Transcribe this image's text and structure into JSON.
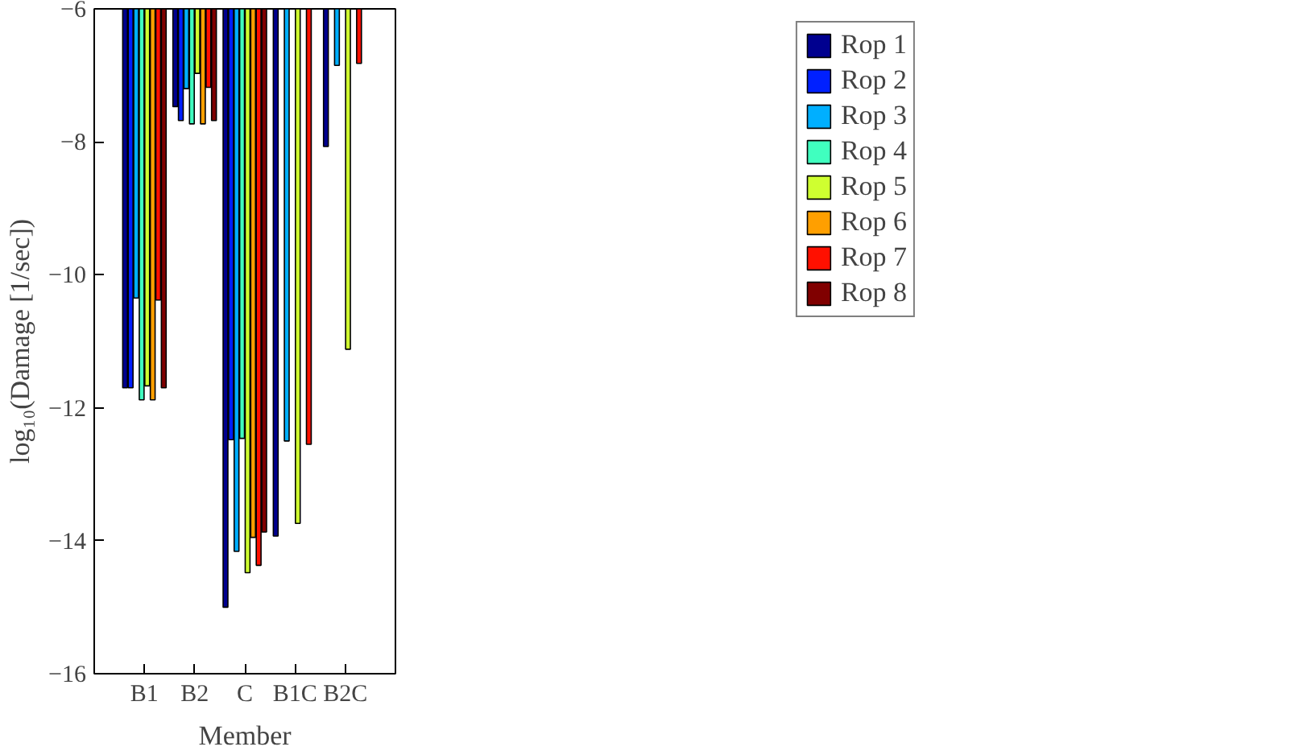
{
  "chart_data": {
    "type": "bar",
    "xlabel": "Member",
    "ylabel": "log₁₀(Damage [1/sec])",
    "categories": [
      "B1",
      "B2",
      "C",
      "B1C",
      "B2C"
    ],
    "series": [
      {
        "name": "Rop 1",
        "color": "#00008f",
        "values": [
          -11.7,
          -7.47,
          -15.0,
          -13.93,
          -8.07
        ]
      },
      {
        "name": "Rop 2",
        "color": "#0020ff",
        "values": [
          -11.7,
          -7.68,
          -12.48,
          null,
          null
        ]
      },
      {
        "name": "Rop 3",
        "color": "#00afff",
        "values": [
          -10.35,
          -7.2,
          -14.16,
          -12.5,
          -6.85
        ]
      },
      {
        "name": "Rop 4",
        "color": "#40ffbf",
        "values": [
          -11.88,
          -7.73,
          -12.46,
          null,
          null
        ]
      },
      {
        "name": "Rop 5",
        "color": "#cfff30",
        "values": [
          -11.67,
          -6.97,
          -14.48,
          -13.74,
          -11.12
        ]
      },
      {
        "name": "Rop 6",
        "color": "#ff9f00",
        "values": [
          -11.88,
          -7.73,
          -13.95,
          null,
          null
        ]
      },
      {
        "name": "Rop 7",
        "color": "#ff1000",
        "values": [
          -10.38,
          -7.18,
          -14.37,
          -12.55,
          -6.82
        ]
      },
      {
        "name": "Rop 8",
        "color": "#800000",
        "values": [
          -11.7,
          -7.68,
          -13.87,
          null,
          null
        ]
      }
    ],
    "ylim": [
      -16,
      -6
    ],
    "yticks": [
      {
        "value": -16,
        "label": "−16"
      },
      {
        "value": -14,
        "label": "−14"
      },
      {
        "value": -12,
        "label": "−12"
      },
      {
        "value": -10,
        "label": "−10"
      },
      {
        "value": -8,
        "label": "−8"
      },
      {
        "value": -6,
        "label": "−6"
      }
    ],
    "grid": false,
    "legend": "right"
  }
}
